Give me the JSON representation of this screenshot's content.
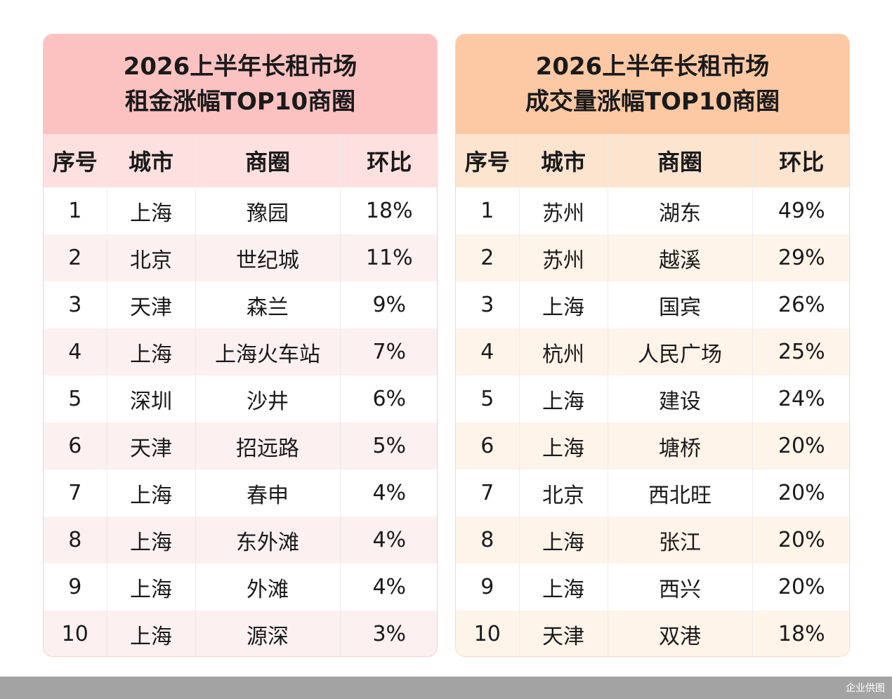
{
  "left": {
    "title_line1": "2026上半年长租市场",
    "title_line2": "租金涨幅TOP10商圈",
    "headers": [
      "序号",
      "城市",
      "商圈",
      "环比"
    ],
    "rows": [
      [
        "1",
        "上海",
        "豫园",
        "18%"
      ],
      [
        "2",
        "北京",
        "世纪城",
        "11%"
      ],
      [
        "3",
        "天津",
        "森兰",
        "9%"
      ],
      [
        "4",
        "上海",
        "上海火车站",
        "7%"
      ],
      [
        "5",
        "深圳",
        "沙井",
        "6%"
      ],
      [
        "6",
        "天津",
        "招远路",
        "5%"
      ],
      [
        "7",
        "上海",
        "春申",
        "4%"
      ],
      [
        "8",
        "上海",
        "东外滩",
        "4%"
      ],
      [
        "9",
        "上海",
        "外滩",
        "4%"
      ],
      [
        "10",
        "上海",
        "源深",
        "3%"
      ]
    ]
  },
  "right": {
    "title_line1": "2026上半年长租市场",
    "title_line2": "成交量涨幅TOP10商圈",
    "headers": [
      "序号",
      "城市",
      "商圈",
      "环比"
    ],
    "rows": [
      [
        "1",
        "苏州",
        "湖东",
        "49%"
      ],
      [
        "2",
        "苏州",
        "越溪",
        "29%"
      ],
      [
        "3",
        "上海",
        "国宾",
        "26%"
      ],
      [
        "4",
        "杭州",
        "人民广场",
        "25%"
      ],
      [
        "5",
        "上海",
        "建设",
        "24%"
      ],
      [
        "6",
        "上海",
        "塘桥",
        "20%"
      ],
      [
        "7",
        "北京",
        "西北旺",
        "20%"
      ],
      [
        "8",
        "上海",
        "张江",
        "20%"
      ],
      [
        "9",
        "上海",
        "西兴",
        "20%"
      ],
      [
        "10",
        "天津",
        "双港",
        "18%"
      ]
    ]
  },
  "footer": {
    "credit": "企业供图"
  },
  "colors": {
    "left_title_bg": "#fcc2c2",
    "right_title_bg": "#fcc9a4",
    "left_header_bg": "#fde0df",
    "right_header_bg": "#fde4cf",
    "footer_bar": "#a3a3a3"
  }
}
